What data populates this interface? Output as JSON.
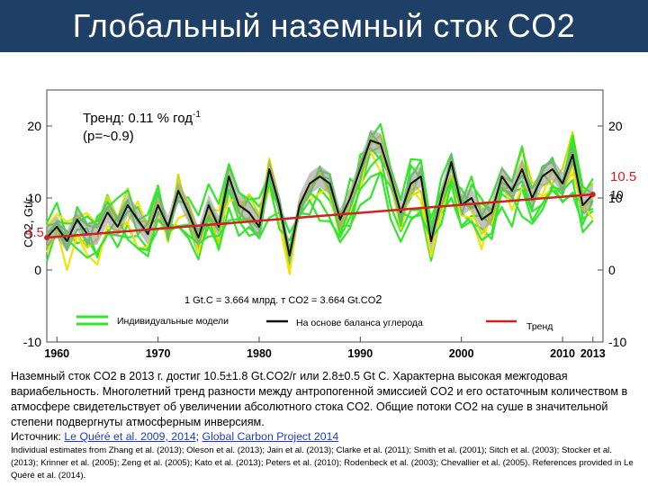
{
  "header": {
    "title": "Глобальный наземный сток CO2"
  },
  "chart_data": {
    "type": "line",
    "ylabel": "CO2, Gt/г.",
    "xticks": [
      "1960",
      "1970",
      "1980",
      "1990",
      "2000",
      "2010",
      "2013"
    ],
    "yticks_left": [
      "20",
      "10",
      "0",
      "-10"
    ],
    "yticks_right": [
      "20",
      "10",
      "0",
      "-10"
    ],
    "xlim": [
      1959,
      2014
    ],
    "ylim": [
      -10,
      25
    ],
    "trend_text": "Тренд:  0.11 % год",
    "trend_sup": "-1",
    "trend_p": "(p=~0.9)",
    "conversion": "1 Gt.C = 3.664 млрд. т  CO2 = 3.664 Gt.CO",
    "conversion_suffix": "2",
    "trend_start_label": "4.5",
    "trend_end_label": "10.5",
    "trend_end_label2": "10",
    "legend": {
      "models": "Индивидуальные модели",
      "budget": "На основе баланса углерода",
      "trend": "Тренд"
    },
    "colors": {
      "models": "#33e62b",
      "models_alt": "#c8e000",
      "yellow": "#f0e400",
      "budget": "#111111",
      "band": "#9a9a9a",
      "trend": "#d42020",
      "title_bg": "#1e3f66"
    },
    "x": [
      1959,
      1960,
      1961,
      1962,
      1963,
      1964,
      1965,
      1966,
      1967,
      1968,
      1969,
      1970,
      1971,
      1972,
      1973,
      1974,
      1975,
      1976,
      1977,
      1978,
      1979,
      1980,
      1981,
      1982,
      1983,
      1984,
      1985,
      1986,
      1987,
      1988,
      1989,
      1990,
      1991,
      1992,
      1993,
      1994,
      1995,
      1996,
      1997,
      1998,
      1999,
      2000,
      2001,
      2002,
      2003,
      2004,
      2005,
      2006,
      2007,
      2008,
      2009,
      2010,
      2011,
      2012,
      2013
    ],
    "budget_values": [
      4.5,
      6,
      4,
      7,
      5,
      5,
      8,
      6,
      9,
      7,
      5,
      9,
      6,
      11,
      8,
      4.5,
      9,
      6,
      13,
      9,
      8,
      6,
      14,
      9,
      2,
      9,
      12,
      13,
      12,
      7,
      10,
      14,
      18,
      17.5,
      13,
      8,
      12,
      13,
      4,
      10,
      15,
      9,
      10,
      7,
      8,
      13,
      11,
      14,
      10,
      13,
      14,
      12,
      16,
      9,
      10.5
    ],
    "trend": {
      "x": [
        1959,
        2013
      ],
      "values": [
        4.5,
        10.5
      ]
    }
  },
  "caption": "Наземный сток CO2 в 2013 г. достиг 10.5±1.8 Gt.CO2/г  или 2.8±0.5 Gt C. Характерна высокая межгодовая вариабельность.  Многолетний тренд разности между антропогенной эмиссией CO2   и его остаточным количеством в атмосфере свидетельствует об увеличении абсолютного стока CO2. Общие потоки CO2 на суше  в значительной степени  подвергнуты  атмосферным  инверсиям.",
  "source": {
    "label": "Источник:",
    "link1": "Le Quéré et al. 2009, 2014",
    "separator": ";",
    "link2": "Global Carbon Project 2014"
  },
  "references": "Individual estimates from Zhang et al. (2013); Oleson et al. (2013); Jain et al. (2013); Clarke et al. (2011); Smith et al. (2001); Sitch et al. (2003); Stocker et al. (2013); Krinner et al. (2005); Zeng et al. (2005); Kato et al. (2013); Peters et al. (2010); Rodenbeck et al. (2003); Chevallier et al. (2005). References provided in Le Quéré et al. (2014)."
}
